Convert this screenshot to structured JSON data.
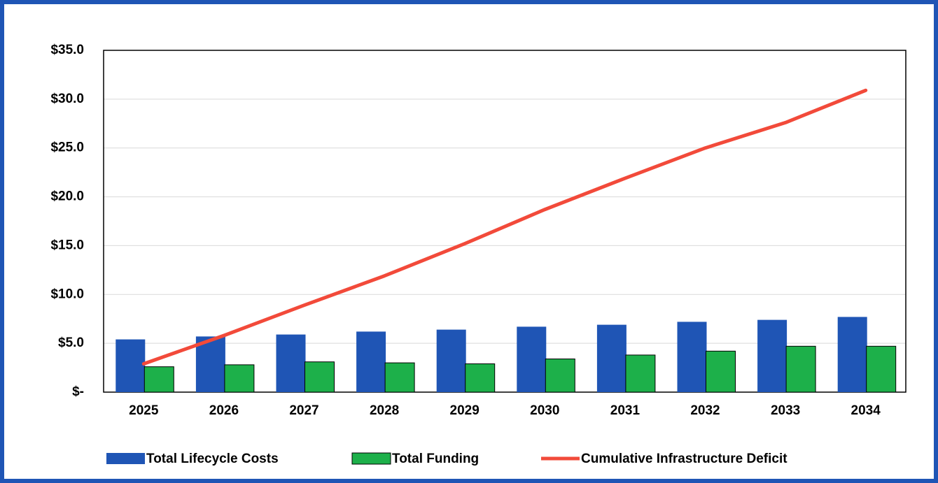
{
  "chart_data": {
    "type": "bar-line",
    "categories": [
      "2025",
      "2026",
      "2027",
      "2028",
      "2029",
      "2030",
      "2031",
      "2032",
      "2033",
      "2034"
    ],
    "series": [
      {
        "name": "Total Lifecycle Costs",
        "type": "bar",
        "color": "#1f55b5",
        "values": [
          5.4,
          5.7,
          5.9,
          6.2,
          6.4,
          6.7,
          6.9,
          7.2,
          7.4,
          7.7
        ]
      },
      {
        "name": "Total Funding",
        "type": "bar",
        "color": "#1db04a",
        "values": [
          2.6,
          2.8,
          3.1,
          3.0,
          2.9,
          3.4,
          3.8,
          4.2,
          4.7,
          4.7
        ]
      },
      {
        "name": "Cumulative Infrastructure Deficit",
        "type": "line",
        "color": "#f24a3a",
        "values": [
          2.9,
          5.8,
          8.9,
          11.9,
          15.2,
          18.7,
          21.9,
          25.0,
          27.6,
          30.9
        ]
      }
    ],
    "ylim": [
      0,
      35
    ],
    "yticks": [
      {
        "value": 0,
        "label": "$-"
      },
      {
        "value": 5,
        "label": "$5.0"
      },
      {
        "value": 10,
        "label": "$10.0"
      },
      {
        "value": 15,
        "label": "$15.0"
      },
      {
        "value": 20,
        "label": "$20.0"
      },
      {
        "value": 25,
        "label": "$25.0"
      },
      {
        "value": 30,
        "label": "$30.0"
      },
      {
        "value": 35,
        "label": "$35.0"
      }
    ],
    "grid": true
  }
}
